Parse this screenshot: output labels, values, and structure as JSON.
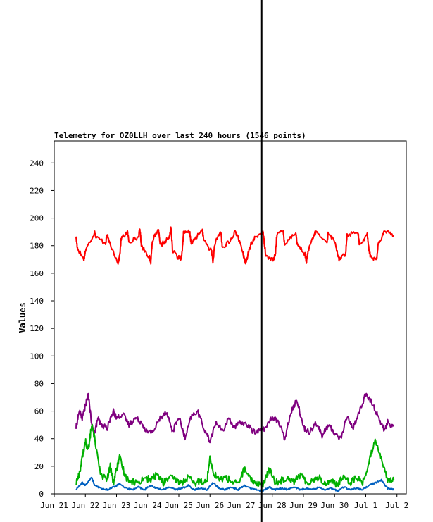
{
  "chart_data": {
    "type": "line",
    "title": "Telemetry for OZ0LLH over last 240 hours (1546 points)",
    "ylabel": "Values",
    "xlabel": "",
    "ylim": [
      0,
      256
    ],
    "yticks": [
      0,
      20,
      40,
      60,
      80,
      100,
      120,
      140,
      160,
      180,
      200,
      220,
      240
    ],
    "xlim_days": [
      0,
      11.3
    ],
    "xticks": [
      {
        "label": "Jun 21",
        "day": 0
      },
      {
        "label": "Jun 22",
        "day": 1
      },
      {
        "label": "Jun 23",
        "day": 2
      },
      {
        "label": "Jun 24",
        "day": 3
      },
      {
        "label": "Jun 25",
        "day": 4
      },
      {
        "label": "Jun 26",
        "day": 5
      },
      {
        "label": "Jun 27",
        "day": 6
      },
      {
        "label": "Jun 28",
        "day": 7
      },
      {
        "label": "Jun 29",
        "day": 8
      },
      {
        "label": "Jun 30",
        "day": 9
      },
      {
        "label": "Jul 1",
        "day": 10
      },
      {
        "label": "Jul 2",
        "day": 11
      }
    ],
    "marker_day": 6.65,
    "grid": false,
    "series": [
      {
        "color": "#ff0000",
        "x": [
          0.7,
          0.75,
          0.95,
          1.0,
          1.3,
          1.35,
          1.65,
          1.7,
          1.75,
          2.05,
          2.1,
          2.15,
          2.35,
          2.4,
          2.7,
          2.75,
          2.8,
          3.05,
          3.1,
          3.15,
          3.35,
          3.4,
          3.7,
          3.75,
          3.8,
          4.05,
          4.1,
          4.15,
          4.35,
          4.4,
          4.75,
          4.8,
          5.05,
          5.1,
          5.15,
          5.35,
          5.4,
          5.75,
          5.8,
          6.05,
          6.1,
          6.15,
          6.3,
          6.45,
          6.7,
          6.75,
          6.8,
          7.05,
          7.1,
          7.15,
          7.35,
          7.4,
          7.75,
          7.8,
          8.05,
          8.1,
          8.15,
          8.35,
          8.4,
          8.75,
          8.8,
          9.05,
          9.1,
          9.15,
          9.35,
          9.4,
          9.75,
          9.8,
          10.05,
          10.1,
          10.15,
          10.35,
          10.4,
          10.6,
          10.9
        ],
        "values": [
          186,
          178,
          170,
          176,
          190,
          186,
          182,
          188,
          183,
          168,
          172,
          185,
          190,
          183,
          186,
          192,
          180,
          172,
          168,
          184,
          191,
          180,
          186,
          193,
          176,
          170,
          174,
          189,
          190,
          181,
          192,
          184,
          176,
          168,
          181,
          190,
          178,
          186,
          192,
          176,
          170,
          168,
          180,
          186,
          190,
          181,
          172,
          170,
          174,
          189,
          190,
          181,
          190,
          181,
          174,
          168,
          176,
          188,
          190,
          182,
          190,
          180,
          172,
          170,
          174,
          188,
          190,
          180,
          188,
          178,
          172,
          170,
          181,
          190,
          188
        ],
        "range": [
          165,
          197
        ]
      },
      {
        "color": "#7f007f",
        "x": [
          0.7,
          0.8,
          0.9,
          1.0,
          1.1,
          1.2,
          1.3,
          1.4,
          1.5,
          1.7,
          1.9,
          2.0,
          2.2,
          2.4,
          2.6,
          2.8,
          3.0,
          3.2,
          3.4,
          3.6,
          3.8,
          4.0,
          4.2,
          4.4,
          4.6,
          4.8,
          5.0,
          5.2,
          5.4,
          5.6,
          5.8,
          6.0,
          6.2,
          6.4,
          6.6,
          6.8,
          7.0,
          7.2,
          7.4,
          7.6,
          7.8,
          8.0,
          8.2,
          8.4,
          8.6,
          8.8,
          9.0,
          9.2,
          9.4,
          9.6,
          9.8,
          10.0,
          10.2,
          10.4,
          10.6,
          10.7,
          10.9
        ],
        "values": [
          48,
          60,
          55,
          64,
          72,
          50,
          44,
          55,
          50,
          48,
          60,
          55,
          58,
          50,
          55,
          52,
          44,
          46,
          55,
          60,
          45,
          56,
          40,
          56,
          60,
          48,
          38,
          52,
          45,
          55,
          48,
          52,
          50,
          45,
          46,
          48,
          56,
          52,
          40,
          60,
          68,
          48,
          45,
          52,
          42,
          50,
          44,
          40,
          56,
          48,
          60,
          72,
          66,
          56,
          46,
          52,
          48
        ],
        "range": [
          33,
          73
        ]
      },
      {
        "color": "#00b000",
        "x": [
          0.7,
          0.8,
          0.9,
          1.0,
          1.1,
          1.2,
          1.3,
          1.5,
          1.7,
          1.8,
          1.9,
          2.0,
          2.1,
          2.3,
          2.5,
          2.7,
          2.9,
          3.1,
          3.3,
          3.5,
          3.7,
          3.9,
          4.1,
          4.3,
          4.5,
          4.7,
          4.9,
          5.0,
          5.1,
          5.3,
          5.5,
          5.7,
          5.9,
          6.1,
          6.3,
          6.5,
          6.7,
          6.9,
          7.1,
          7.3,
          7.5,
          7.7,
          7.9,
          8.1,
          8.3,
          8.5,
          8.7,
          8.9,
          9.1,
          9.3,
          9.5,
          9.7,
          9.9,
          10.1,
          10.3,
          10.5,
          10.7,
          10.9
        ],
        "values": [
          8,
          14,
          26,
          38,
          32,
          50,
          40,
          14,
          10,
          20,
          8,
          18,
          26,
          12,
          9,
          8,
          12,
          10,
          14,
          8,
          12,
          10,
          8,
          12,
          7,
          10,
          8,
          28,
          16,
          10,
          12,
          9,
          7,
          18,
          10,
          8,
          6,
          18,
          8,
          10,
          12,
          9,
          14,
          8,
          10,
          12,
          7,
          10,
          6,
          14,
          8,
          12,
          8,
          22,
          40,
          26,
          9,
          12
        ],
        "range": [
          2,
          52
        ]
      },
      {
        "color": "#0060c0",
        "x": [
          0.7,
          0.9,
          1.0,
          1.2,
          1.3,
          1.5,
          1.7,
          1.9,
          2.1,
          2.3,
          2.5,
          2.7,
          2.9,
          3.1,
          3.3,
          3.5,
          3.7,
          3.9,
          4.1,
          4.3,
          4.5,
          4.7,
          4.9,
          5.1,
          5.3,
          5.5,
          5.7,
          5.9,
          6.1,
          6.3,
          6.5,
          6.7,
          6.9,
          7.1,
          7.3,
          7.5,
          7.7,
          7.9,
          8.1,
          8.3,
          8.5,
          8.7,
          8.9,
          9.1,
          9.3,
          9.5,
          9.7,
          9.9,
          10.1,
          10.3,
          10.5,
          10.7,
          10.9
        ],
        "values": [
          3,
          8,
          6,
          12,
          6,
          4,
          3,
          5,
          7,
          4,
          3,
          5,
          3,
          6,
          4,
          3,
          5,
          3,
          4,
          6,
          3,
          4,
          3,
          8,
          4,
          3,
          5,
          3,
          6,
          4,
          3,
          2,
          5,
          3,
          4,
          3,
          5,
          3,
          4,
          3,
          5,
          3,
          4,
          2,
          5,
          3,
          4,
          3,
          6,
          8,
          10,
          4,
          3
        ],
        "range": [
          1,
          12
        ]
      }
    ]
  }
}
